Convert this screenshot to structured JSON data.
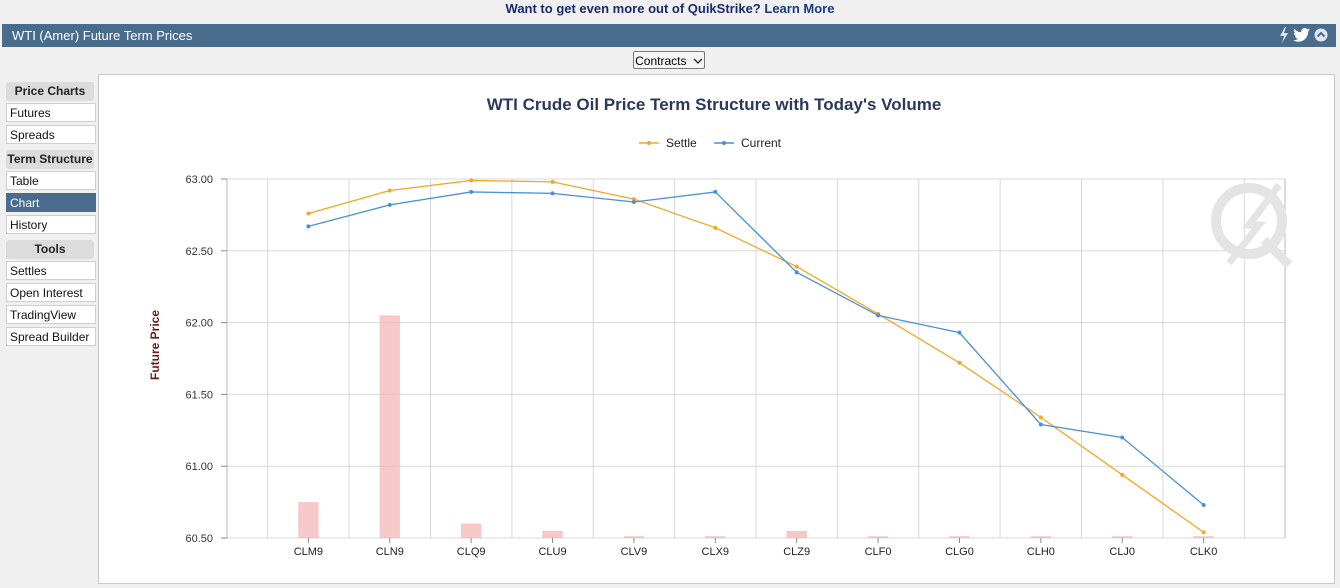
{
  "promo": {
    "text": "Want to get even more out of QuikStrike?",
    "link": "Learn More"
  },
  "window": {
    "title": "WTI (Amer) Future Term Prices"
  },
  "toolbar": {
    "contracts_label": "Contracts"
  },
  "sidebar": {
    "sections": [
      {
        "title": "Price Charts",
        "items": [
          "Futures",
          "Spreads"
        ]
      },
      {
        "title": "Term Structure",
        "items": [
          "Table",
          "Chart",
          "History"
        ]
      },
      {
        "title": "Tools",
        "items": [
          "Settles",
          "Open Interest",
          "TradingView",
          "Spread Builder"
        ]
      }
    ],
    "active_item": "Chart"
  },
  "chart_data": {
    "type": "line",
    "title": "WTI Crude Oil Price Term Structure with Today's Volume",
    "ylabel": "Future Price",
    "xlabel": "",
    "ylim": [
      60.5,
      63.0
    ],
    "yticks": [
      "63.00",
      "62.50",
      "62.00",
      "61.50",
      "61.00",
      "60.50"
    ],
    "categories": [
      "CLM9",
      "CLN9",
      "CLQ9",
      "CLU9",
      "CLV9",
      "CLX9",
      "CLZ9",
      "CLF0",
      "CLG0",
      "CLH0",
      "CLJ0",
      "CLK0"
    ],
    "series": [
      {
        "name": "Settle",
        "color": "#f5a623",
        "values": [
          62.76,
          62.92,
          62.99,
          62.98,
          62.86,
          62.66,
          62.39,
          62.06,
          61.72,
          61.34,
          60.94,
          60.54
        ]
      },
      {
        "name": "Current",
        "color": "#4a90d9",
        "values": [
          62.67,
          62.82,
          62.91,
          62.9,
          62.84,
          62.91,
          62.35,
          62.05,
          61.93,
          61.29,
          61.2,
          60.73
        ]
      }
    ],
    "volume": {
      "color": "#f4b6b6",
      "values": [
        0.1,
        0.62,
        0.04,
        0.02,
        0.005,
        0.005,
        0.02,
        0.005,
        0.005,
        0.005,
        0.005,
        0.005
      ]
    },
    "legend_position": "top-center",
    "grid": true
  }
}
